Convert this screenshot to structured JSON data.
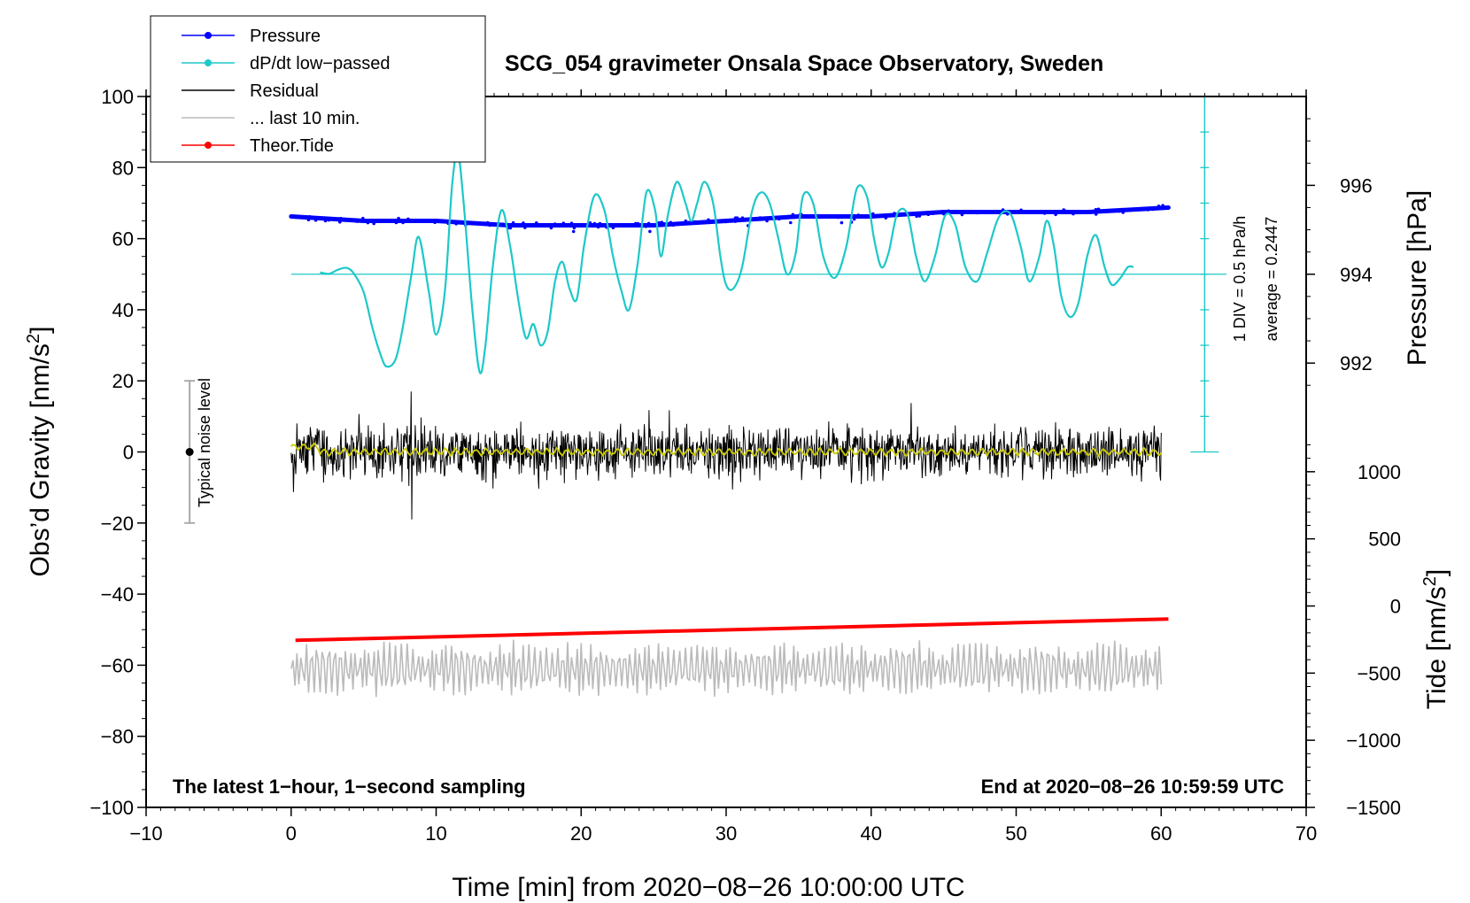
{
  "chart_data": {
    "type": "line",
    "title": "SCG_054 gravimeter Onsala Space Observatory, Sweden",
    "xlabel": "Time [min] from 2020−08−26 10:00:00 UTC",
    "ylabel_left": "Obs’d Gravity [nm/s",
    "ylabel_right_pressure": "Pressure [hPa]",
    "ylabel_right_tide": "Tide [nm/s",
    "superscript": "2",
    "xlim": [
      -10,
      70
    ],
    "ylim_left": [
      -100,
      100
    ],
    "pressure_range": [
      990,
      998
    ],
    "tide_range": [
      -1500,
      1500
    ],
    "x_ticks": [
      -10,
      0,
      10,
      20,
      30,
      40,
      50,
      60,
      70
    ],
    "x_tick_labels": [
      "−10",
      "0",
      "10",
      "20",
      "30",
      "40",
      "50",
      "60",
      "70"
    ],
    "y_ticks": [
      100,
      80,
      60,
      40,
      20,
      0,
      -20,
      -40,
      -60,
      -80,
      -100
    ],
    "y_tick_labels": [
      "100",
      "80",
      "60",
      "40",
      "20",
      "0",
      "−20",
      "−40",
      "−60",
      "−80",
      "−100"
    ],
    "pressure_ticks": [
      996,
      994,
      992
    ],
    "pressure_tick_labels": [
      "996",
      "994",
      "992"
    ],
    "tide_ticks": [
      1000,
      500,
      0,
      -500,
      -1000,
      -1500
    ],
    "tide_tick_labels": [
      "1000",
      "500",
      "0",
      "−500",
      "−1000",
      "−1500"
    ],
    "legend": [
      {
        "label": "Pressure",
        "color": "#0000ff",
        "marker": true
      },
      {
        "label": "dP/dt low−passed",
        "color": "#1ec8c8",
        "marker": true
      },
      {
        "label": "Residual",
        "color": "#000000",
        "marker": false
      },
      {
        "label": "... last 10 min.",
        "color": "#bbbbbb",
        "marker": false
      },
      {
        "label": "Theor.Tide",
        "color": "#ff0000",
        "marker": true
      }
    ],
    "annotations": {
      "bottom_left": "The latest 1−hour, 1−second sampling",
      "bottom_right": "End at 2020−08−26 10:59:59 UTC",
      "noise_label": "Typical noise level",
      "div_label": "1 DIV = 0.5 hPa/h",
      "avg_label": "average = 0.2447"
    },
    "noise_bar": {
      "x": -7,
      "y_low": -20,
      "y_high": 20,
      "center": 0
    },
    "dpdt_scale": {
      "x": 63,
      "y_baseline": 50,
      "y_top": 100,
      "y_bottom": 0,
      "divisions": 10,
      "hpa_per_div": 0.5
    },
    "series": [
      {
        "name": "Pressure",
        "color": "#0000ff",
        "x": [
          0,
          5,
          10,
          15,
          20,
          25,
          30,
          35,
          40,
          45,
          50,
          55,
          60.5
        ],
        "values": [
          995.3,
          995.2,
          995.2,
          995.1,
          995.1,
          995.1,
          995.2,
          995.3,
          995.3,
          995.4,
          995.4,
          995.4,
          995.5
        ]
      },
      {
        "name": "dP/dt low-passed",
        "color": "#1ec8c8",
        "x": [
          2,
          2.6,
          3.2,
          3.8,
          4.3,
          5.0,
          5.6,
          6.2,
          6.6,
          7.2,
          7.7,
          8.3,
          8.8,
          9.5,
          10.0,
          10.6,
          11.1,
          11.5,
          11.9,
          12.5,
          13.0,
          13.4,
          13.9,
          14.5,
          15.1,
          15.7,
          16.2,
          16.7,
          17.2,
          17.7,
          18.2,
          18.7,
          19.2,
          19.7,
          20.2,
          20.9,
          21.6,
          22.2,
          22.8,
          23.3,
          23.9,
          24.5,
          25.1,
          25.5,
          26.0,
          26.6,
          27.2,
          27.6,
          28.0,
          28.5,
          29.1,
          29.6,
          30.0,
          30.5,
          31.1,
          31.8,
          32.4,
          33.0,
          33.6,
          34.2,
          34.8,
          35.3,
          36.0,
          36.7,
          37.5,
          38.3,
          39.0,
          39.7,
          40.2,
          40.7,
          41.2,
          41.8,
          42.5,
          43.1,
          43.7,
          44.4,
          45.1,
          45.8,
          46.5,
          47.3,
          48.0,
          48.8,
          49.6,
          50.3,
          50.9,
          51.6,
          52.1,
          52.6,
          53.1,
          53.7,
          54.3,
          54.9,
          55.5,
          56.1,
          56.6,
          57.2,
          57.7,
          58.1
        ],
        "values": [
          50.5,
          50.1,
          51.2,
          51.8,
          50.3,
          45.0,
          35.0,
          27.0,
          24.0,
          26.0,
          35.0,
          50.0,
          60.5,
          45.0,
          33.0,
          45.0,
          75.0,
          84.0,
          70.0,
          40.0,
          22.5,
          30.0,
          52.0,
          68.0,
          58.0,
          42.0,
          32.0,
          36.0,
          30.0,
          34.0,
          48.0,
          53.5,
          46.0,
          43.0,
          58.0,
          72.0,
          68.0,
          55.0,
          45.0,
          40.0,
          53.0,
          73.0,
          68.0,
          55.0,
          67.0,
          76.0,
          70.0,
          65.0,
          70.0,
          76.0,
          70.0,
          55.0,
          47.0,
          46.0,
          52.0,
          68.0,
          73.0,
          70.0,
          60.0,
          50.0,
          56.0,
          72.0,
          70.0,
          55.0,
          49.0,
          58.0,
          74.0,
          72.0,
          60.0,
          52.0,
          56.0,
          67.0,
          67.0,
          55.0,
          48.0,
          55.0,
          66.5,
          64.0,
          52.0,
          48.0,
          56.0,
          66.0,
          67.0,
          58.0,
          48.0,
          55.0,
          65.0,
          58.0,
          44.0,
          38.0,
          42.0,
          55.0,
          61.0,
          52.0,
          47.0,
          49.0,
          52.0,
          52.0
        ]
      },
      {
        "name": "Residual",
        "color": "#000000",
        "x_range": [
          0,
          60
        ],
        "typical_amplitude": 6,
        "values_min": -19,
        "values_max": 17
      },
      {
        "name": "Residual smoothed",
        "color": "#cccc00",
        "x_range": [
          0,
          60
        ],
        "typical_value": 0
      },
      {
        "name": "... last 10 min.",
        "color": "#bbbbbb",
        "x_range": [
          0,
          60
        ],
        "center": -61,
        "typical_amplitude": 5
      },
      {
        "name": "Theor.Tide",
        "color": "#ff0000",
        "x": [
          0.3,
          60.5
        ],
        "values": [
          -53,
          -47
        ]
      }
    ]
  }
}
